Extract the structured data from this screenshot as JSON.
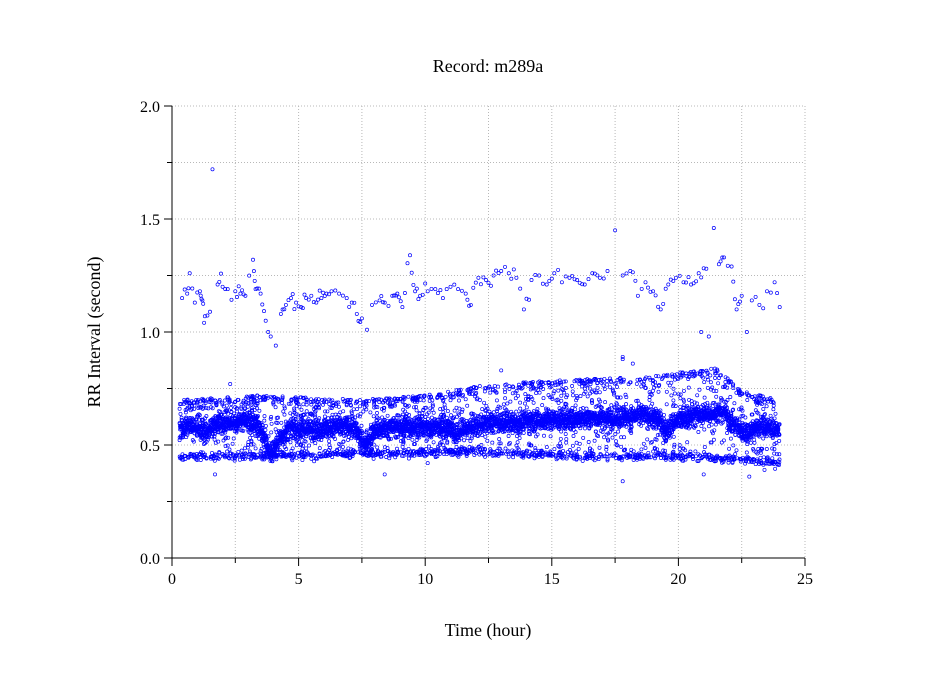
{
  "chart_data": {
    "type": "scatter",
    "title": "Record:  m289a",
    "xlabel": "Time (hour)",
    "ylabel": "RR Interval (second)",
    "xlim": [
      0,
      25
    ],
    "ylim": [
      0,
      2.0
    ],
    "xticks": [
      "0",
      "5",
      "10",
      "15",
      "20",
      "25"
    ],
    "yticks": [
      "0.0",
      "0.5",
      "1.0",
      "1.5",
      "2.0"
    ],
    "x_tick_values": [
      0,
      5,
      10,
      15,
      20,
      25
    ],
    "y_tick_values": [
      0,
      0.5,
      1.0,
      1.5,
      2.0
    ],
    "x_minor_tick_values": [
      2.5,
      7.5,
      12.5,
      17.5,
      22.5
    ],
    "y_minor_tick_values": [
      0.25,
      0.75,
      1.25,
      1.75
    ],
    "grid": true,
    "marker_color": "#0000ff",
    "series": [
      {
        "baseline": [
          [
            0.3,
            0.58
          ],
          [
            1.0,
            0.58
          ],
          [
            1.4,
            0.56
          ],
          [
            1.8,
            0.6
          ],
          [
            2.5,
            0.6
          ],
          [
            3.3,
            0.6
          ],
          [
            3.6,
            0.55
          ],
          [
            3.9,
            0.46
          ],
          [
            4.2,
            0.52
          ],
          [
            4.6,
            0.57
          ],
          [
            5.5,
            0.57
          ],
          [
            6.5,
            0.58
          ],
          [
            7.2,
            0.58
          ],
          [
            7.6,
            0.5
          ],
          [
            8.0,
            0.56
          ],
          [
            8.5,
            0.58
          ],
          [
            9.5,
            0.58
          ],
          [
            10.5,
            0.58
          ],
          [
            11.0,
            0.58
          ],
          [
            11.2,
            0.54
          ],
          [
            11.5,
            0.57
          ],
          [
            12.5,
            0.6
          ],
          [
            13.5,
            0.6
          ],
          [
            14.5,
            0.61
          ],
          [
            15.5,
            0.61
          ],
          [
            16.5,
            0.62
          ],
          [
            17.5,
            0.62
          ],
          [
            18.5,
            0.63
          ],
          [
            19.2,
            0.62
          ],
          [
            19.5,
            0.56
          ],
          [
            19.8,
            0.6
          ],
          [
            20.5,
            0.63
          ],
          [
            21.3,
            0.64
          ],
          [
            21.8,
            0.65
          ],
          [
            22.1,
            0.6
          ],
          [
            22.5,
            0.56
          ],
          [
            22.8,
            0.56
          ],
          [
            23.2,
            0.58
          ],
          [
            23.6,
            0.58
          ],
          [
            24.0,
            0.56
          ]
        ],
        "upper_cluster": [
          [
            0.4,
            1.15
          ],
          [
            0.6,
            1.17
          ],
          [
            0.7,
            1.26
          ],
          [
            0.9,
            1.13
          ],
          [
            1.1,
            1.18
          ],
          [
            1.2,
            1.14
          ],
          [
            1.3,
            1.07
          ],
          [
            1.5,
            1.09
          ],
          [
            1.6,
            1.72
          ],
          [
            1.8,
            1.21
          ],
          [
            2.0,
            1.2
          ],
          [
            2.2,
            1.19
          ],
          [
            2.5,
            1.18
          ],
          [
            2.7,
            1.17
          ],
          [
            2.9,
            1.16
          ],
          [
            3.2,
            1.32
          ],
          [
            3.3,
            1.19
          ],
          [
            3.5,
            1.17
          ],
          [
            3.7,
            1.05
          ],
          [
            3.8,
            1.0
          ],
          [
            3.9,
            0.98
          ],
          [
            4.1,
            0.94
          ],
          [
            4.3,
            1.08
          ],
          [
            4.5,
            1.12
          ],
          [
            4.7,
            1.15
          ],
          [
            4.9,
            1.13
          ],
          [
            5.1,
            1.11
          ],
          [
            5.3,
            1.15
          ],
          [
            5.5,
            1.16
          ],
          [
            5.7,
            1.13
          ],
          [
            5.9,
            1.15
          ],
          [
            6.1,
            1.17
          ],
          [
            6.3,
            1.18
          ],
          [
            6.6,
            1.17
          ],
          [
            6.9,
            1.15
          ],
          [
            7.1,
            1.13
          ],
          [
            7.3,
            1.08
          ],
          [
            7.5,
            1.06
          ],
          [
            7.7,
            1.01
          ],
          [
            7.9,
            1.12
          ],
          [
            8.2,
            1.14
          ],
          [
            8.4,
            1.13
          ],
          [
            8.7,
            1.16
          ],
          [
            8.9,
            1.17
          ],
          [
            9.1,
            1.11
          ],
          [
            9.4,
            1.34
          ],
          [
            9.6,
            1.18
          ],
          [
            9.8,
            1.16
          ],
          [
            10.1,
            1.18
          ],
          [
            10.4,
            1.19
          ],
          [
            10.7,
            1.15
          ],
          [
            11.0,
            1.2
          ],
          [
            11.3,
            1.19
          ],
          [
            11.6,
            1.17
          ],
          [
            11.8,
            1.12
          ],
          [
            12.1,
            1.24
          ],
          [
            12.4,
            1.23
          ],
          [
            12.7,
            1.25
          ],
          [
            13.0,
            1.27
          ],
          [
            13.3,
            1.26
          ],
          [
            13.6,
            1.24
          ],
          [
            13.9,
            1.1
          ],
          [
            14.2,
            1.23
          ],
          [
            14.5,
            1.25
          ],
          [
            14.8,
            1.21
          ],
          [
            15.1,
            1.26
          ],
          [
            15.4,
            1.22
          ],
          [
            15.7,
            1.24
          ],
          [
            16.0,
            1.23
          ],
          [
            16.3,
            1.21
          ],
          [
            16.6,
            1.26
          ],
          [
            16.9,
            1.24
          ],
          [
            17.2,
            1.27
          ],
          [
            17.5,
            1.45
          ],
          [
            17.8,
            1.25
          ],
          [
            18.1,
            1.27
          ],
          [
            18.4,
            1.16
          ],
          [
            18.7,
            1.22
          ],
          [
            19.0,
            1.18
          ],
          [
            19.3,
            1.1
          ],
          [
            19.6,
            1.21
          ],
          [
            19.9,
            1.24
          ],
          [
            20.2,
            1.22
          ],
          [
            20.5,
            1.21
          ],
          [
            20.8,
            1.26
          ],
          [
            21.1,
            1.28
          ],
          [
            21.4,
            1.46
          ],
          [
            21.6,
            1.3
          ],
          [
            21.8,
            1.33
          ],
          [
            22.1,
            1.29
          ],
          [
            22.3,
            1.1
          ],
          [
            22.5,
            1.16
          ],
          [
            22.7,
            1.0
          ],
          [
            22.9,
            1.14
          ],
          [
            23.2,
            1.12
          ],
          [
            23.5,
            1.18
          ],
          [
            23.8,
            1.22
          ],
          [
            24.0,
            1.11
          ],
          [
            20.9,
            1.0
          ],
          [
            21.2,
            0.98
          ],
          [
            17.8,
            0.88
          ],
          [
            18.2,
            0.86
          ]
        ],
        "lower_band": [
          [
            0.3,
            0.45
          ],
          [
            3.5,
            0.45
          ],
          [
            7.5,
            0.46
          ],
          [
            11.5,
            0.47
          ],
          [
            14.5,
            0.46
          ],
          [
            16.0,
            0.45
          ],
          [
            18.5,
            0.45
          ],
          [
            20.0,
            0.45
          ],
          [
            22.0,
            0.44
          ],
          [
            24.0,
            0.42
          ]
        ],
        "upper_band": [
          [
            0.3,
            0.7
          ],
          [
            3.5,
            0.72
          ],
          [
            7.5,
            0.7
          ],
          [
            10.0,
            0.72
          ],
          [
            12.5,
            0.77
          ],
          [
            16.0,
            0.79
          ],
          [
            18.5,
            0.8
          ],
          [
            21.5,
            0.84
          ],
          [
            22.5,
            0.74
          ],
          [
            24.0,
            0.7
          ]
        ],
        "x_range_hours": [
          0.3,
          24.0
        ]
      }
    ]
  }
}
